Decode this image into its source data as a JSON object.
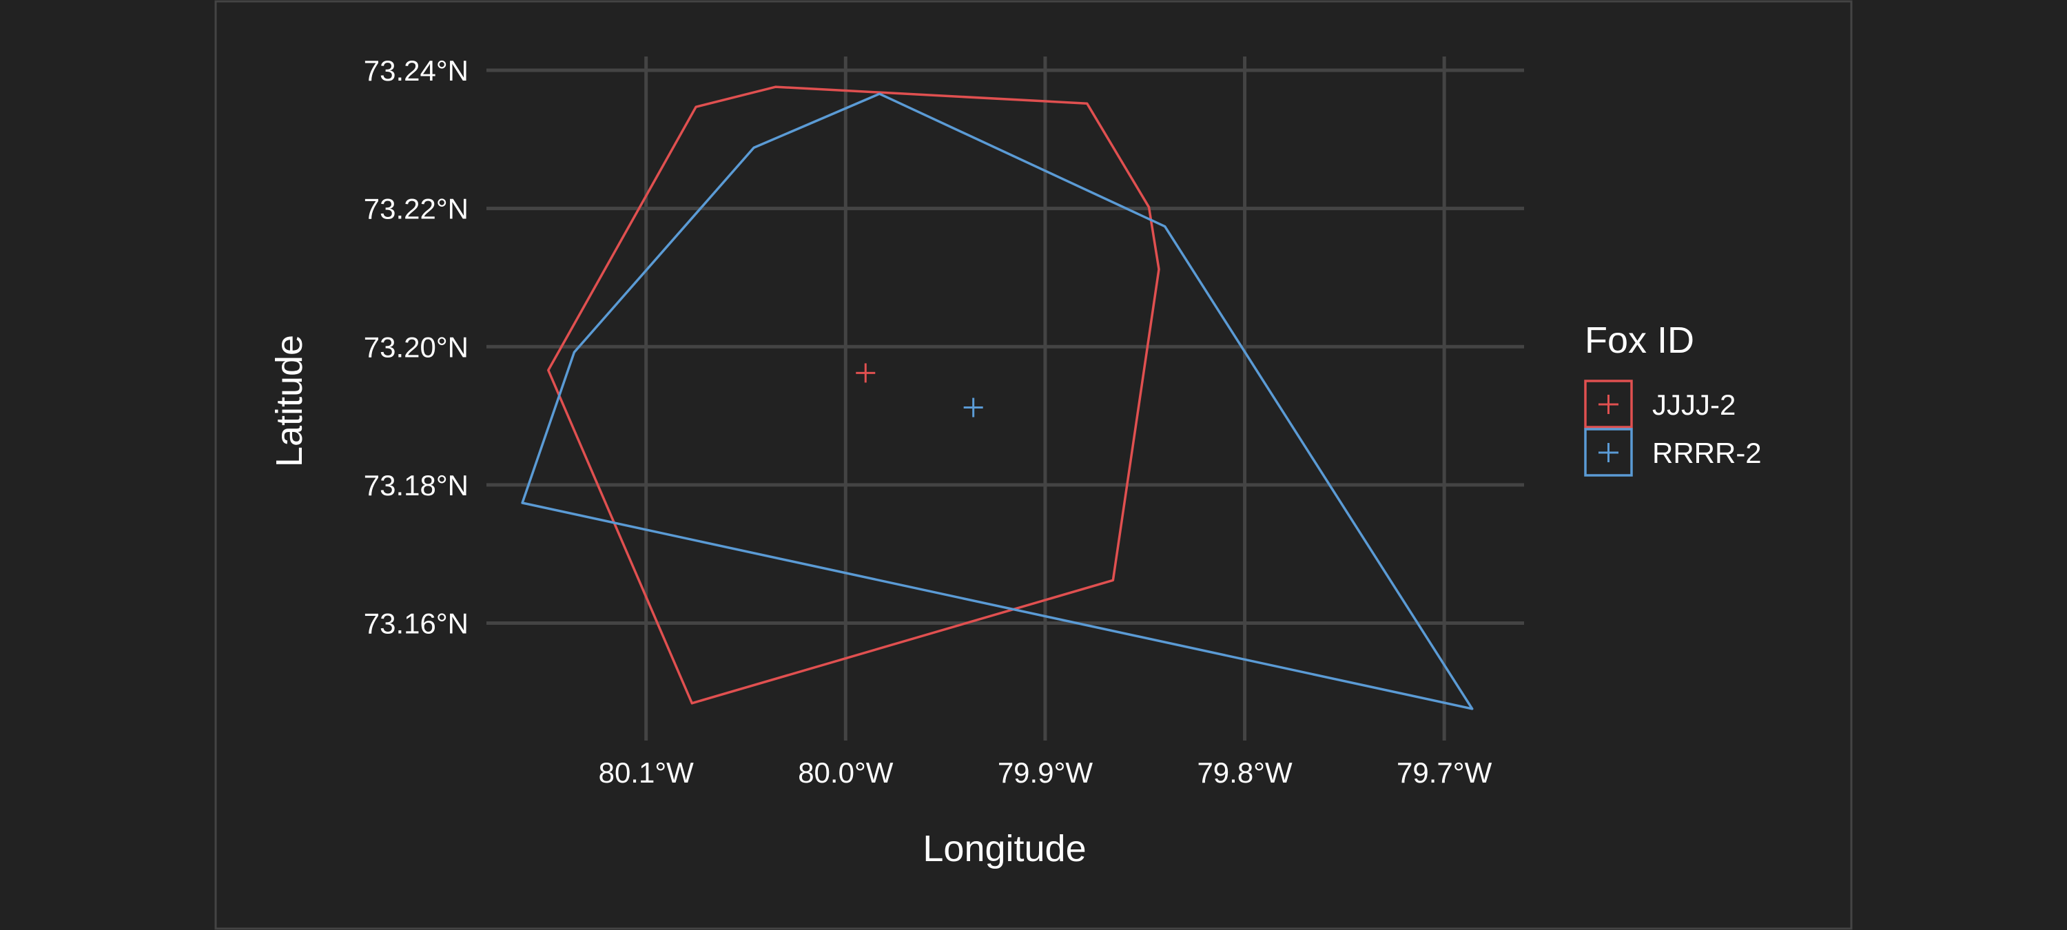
{
  "chart_data": {
    "type": "scatter",
    "title": "",
    "xlabel": "Longitude",
    "ylabel": "Latitude",
    "xlim": [
      -80.18,
      -79.66
    ],
    "ylim": [
      73.143,
      73.242
    ],
    "x_ticks": [
      {
        "value": -80.1,
        "label": "80.1°W"
      },
      {
        "value": -80.0,
        "label": "80.0°W"
      },
      {
        "value": -79.9,
        "label": "79.9°W"
      },
      {
        "value": -79.8,
        "label": "79.8°W"
      },
      {
        "value": -79.7,
        "label": "79.7°W"
      }
    ],
    "y_ticks": [
      {
        "value": 73.16,
        "label": "73.16°N"
      },
      {
        "value": 73.18,
        "label": "73.18°N"
      },
      {
        "value": 73.2,
        "label": "73.20°N"
      },
      {
        "value": 73.22,
        "label": "73.22°N"
      },
      {
        "value": 73.24,
        "label": "73.24°N"
      }
    ],
    "grid": true,
    "legend": {
      "title": "Fox ID",
      "position": "right"
    },
    "series": [
      {
        "name": "JJJJ-2",
        "color": "#e05050",
        "centroid": {
          "x": -79.99,
          "y": 73.1962
        },
        "polygon": [
          {
            "x": -80.075,
            "y": 73.2347
          },
          {
            "x": -80.035,
            "y": 73.2376
          },
          {
            "x": -79.879,
            "y": 73.2352
          },
          {
            "x": -79.848,
            "y": 73.2202
          },
          {
            "x": -79.843,
            "y": 73.2112
          },
          {
            "x": -79.866,
            "y": 73.1662
          },
          {
            "x": -80.077,
            "y": 73.1484
          },
          {
            "x": -80.149,
            "y": 73.1966
          }
        ]
      },
      {
        "name": "RRRR-2",
        "color": "#5b9bd5",
        "centroid": {
          "x": -79.936,
          "y": 73.1912
        },
        "polygon": [
          {
            "x": -80.046,
            "y": 73.2288
          },
          {
            "x": -79.983,
            "y": 73.2366
          },
          {
            "x": -79.84,
            "y": 73.2174
          },
          {
            "x": -79.686,
            "y": 73.1476
          },
          {
            "x": -80.162,
            "y": 73.1774
          },
          {
            "x": -80.136,
            "y": 73.1992
          }
        ]
      }
    ]
  }
}
